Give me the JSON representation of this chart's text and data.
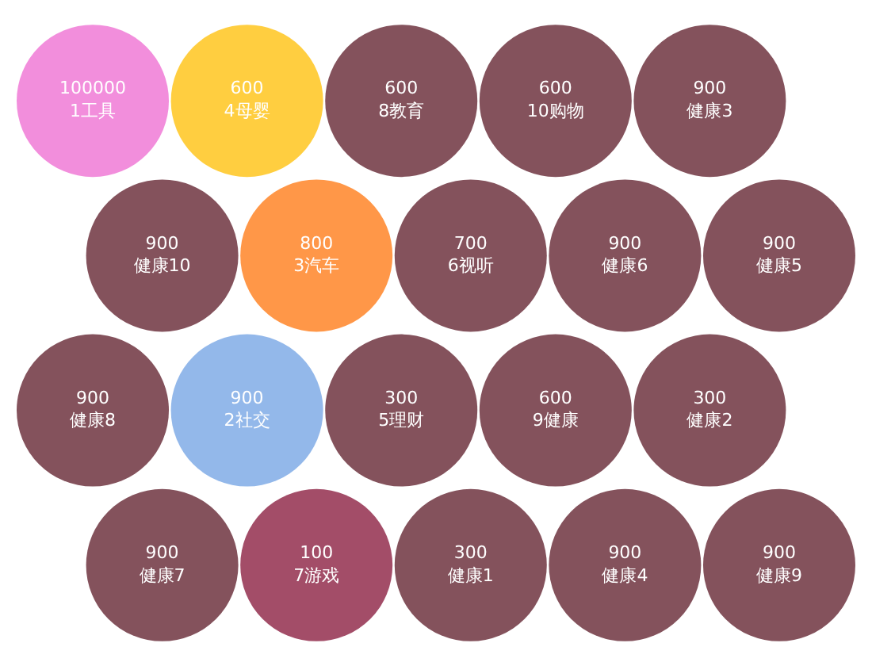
{
  "chart_data": {
    "type": "other",
    "data_labels": true,
    "categories": [
      "1工具",
      "4母婴",
      "8教育",
      "10购物",
      "健康3",
      "健康10",
      "3汽车",
      "6视听",
      "健康6",
      "健康5",
      "健康8",
      "2社交",
      "5理财",
      "9健康",
      "健康2",
      "健康7",
      "7游戏",
      "健康1",
      "健康4",
      "健康9"
    ],
    "values": [
      100000,
      600,
      600,
      600,
      900,
      900,
      800,
      700,
      900,
      900,
      900,
      900,
      300,
      600,
      300,
      900,
      100,
      300,
      900,
      900
    ],
    "colors": [
      "#f07ad6",
      "#ffc61e",
      "#6e3440",
      "#6e3440",
      "#6e3440",
      "#6e3440",
      "#ff8528",
      "#6e3440",
      "#6e3440",
      "#6e3440",
      "#6e3440",
      "#80ace6",
      "#6e3440",
      "#6e3440",
      "#6e3440",
      "#6e3440",
      "#932e4e",
      "#6e3440",
      "#6e3440",
      "#6e3440"
    ]
  }
}
